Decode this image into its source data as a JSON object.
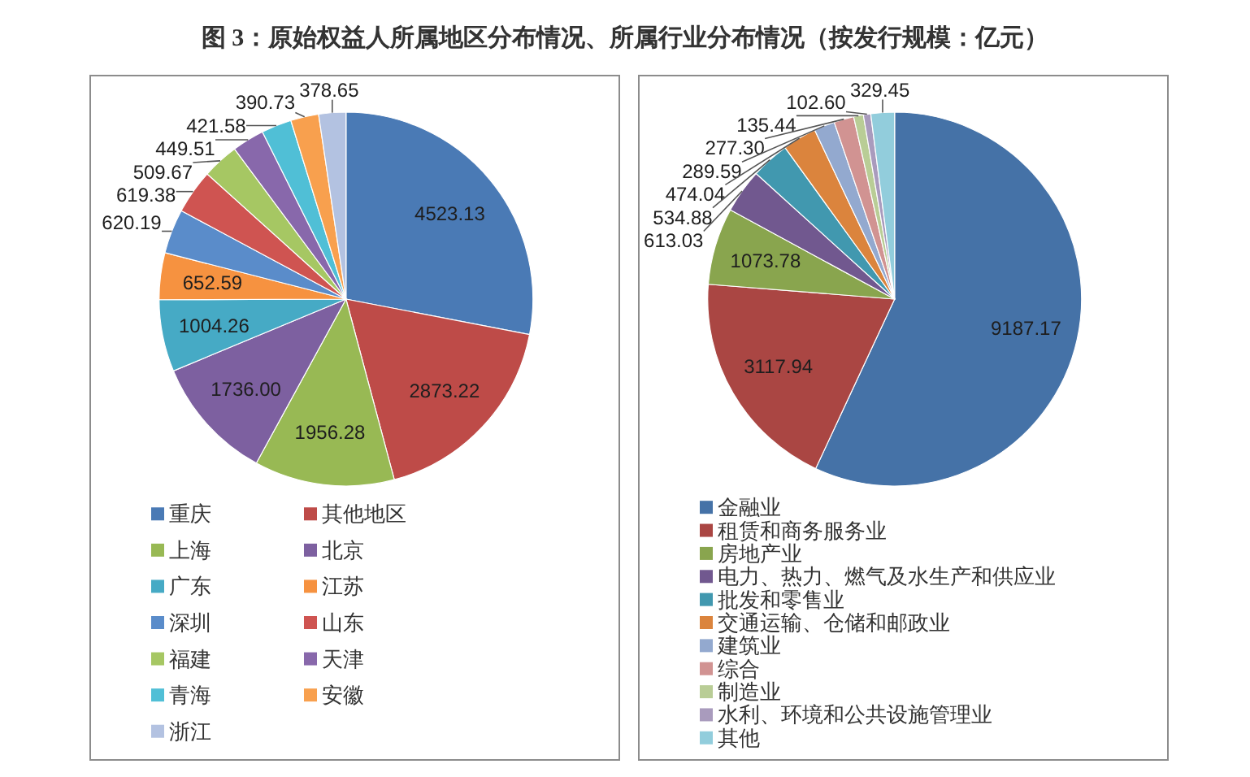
{
  "chart_data": [
    {
      "type": "pie",
      "title": "图 3：原始权益人所属地区分布情况、所属行业分布情况（按发行规模：亿元）",
      "categories": [
        "重庆",
        "其他地区",
        "上海",
        "北京",
        "广东",
        "江苏",
        "深圳",
        "山东",
        "福建",
        "天津",
        "青海",
        "安徽",
        "浙江"
      ],
      "values": [
        4523.13,
        2873.22,
        1956.28,
        1736.0,
        1004.26,
        652.59,
        620.19,
        619.38,
        509.67,
        449.51,
        421.58,
        390.73,
        378.65
      ],
      "value_labels": [
        "4523.13",
        "2873.22",
        "1956.28",
        "1736.00",
        "1004.26",
        "652.59",
        "620.19",
        "619.38",
        "509.67",
        "449.51",
        "421.58",
        "390.73",
        "378.65"
      ],
      "colors": [
        "#4a7ab5",
        "#be4b48",
        "#98b954",
        "#7d60a0",
        "#46aac5",
        "#f69240",
        "#5a8cca",
        "#cf5451",
        "#a6c763",
        "#8868ab",
        "#50bfd6",
        "#f8a04e",
        "#b3c2e1"
      ],
      "legend": "bottom"
    },
    {
      "type": "pie",
      "categories": [
        "金融业",
        "租赁和商务服务业",
        "房地产业",
        "电力、热力、燃气及水生产和供应业",
        "批发和零售业",
        "交通运输、仓储和邮政业",
        "建筑业",
        "综合",
        "制造业",
        "水利、环境和公共设施管理业",
        "其他"
      ],
      "values": [
        9187.17,
        3117.94,
        1073.78,
        613.03,
        534.88,
        474.04,
        289.59,
        277.3,
        135.44,
        102.6,
        329.45
      ],
      "value_labels": [
        "9187.17",
        "3117.94",
        "1073.78",
        "613.03",
        "534.88",
        "474.04",
        "289.59",
        "277.30",
        "135.44",
        "102.60",
        "329.45"
      ],
      "colors": [
        "#4572a7",
        "#aa4643",
        "#89a54e",
        "#71588f",
        "#4198af",
        "#db843d",
        "#93a9cf",
        "#d19392",
        "#b9cd96",
        "#a99bbd",
        "#92cddc"
      ],
      "legend": "bottom"
    }
  ]
}
